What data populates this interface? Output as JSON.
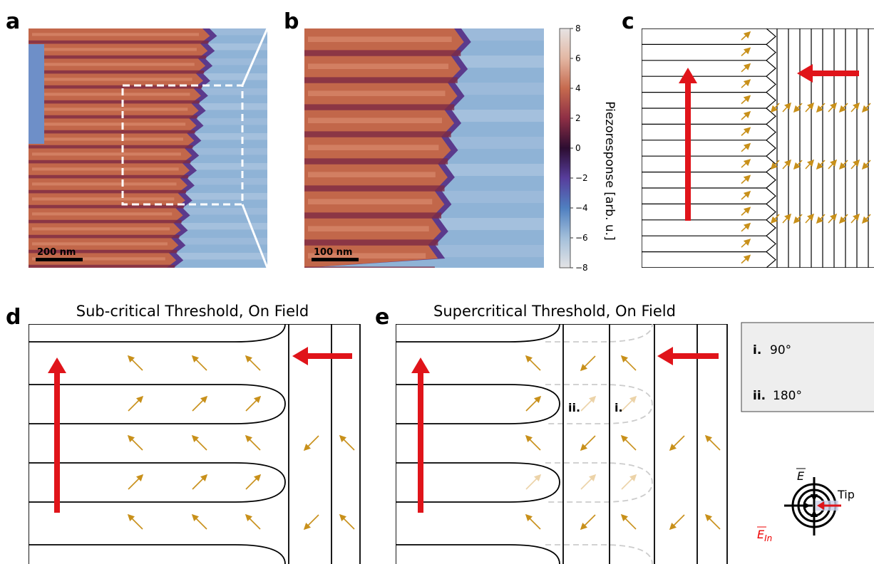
{
  "panels": {
    "a": "a",
    "b": "b",
    "c": "c",
    "d": "d",
    "e": "e"
  },
  "panel_a": {
    "scalebar": "200 nm"
  },
  "panel_b": {
    "scalebar": "100 nm"
  },
  "colorbar": {
    "ticks": [
      "8",
      "6",
      "4",
      "2",
      "0",
      "−2",
      "−4",
      "−6",
      "−8"
    ],
    "label": "Piezoresponse [arb. u.]"
  },
  "panel_d": {
    "title": "Sub-critical Threshold, On Field"
  },
  "panel_e": {
    "title": "Supercritical Threshold, On Field",
    "labels": [
      "ii.",
      "i."
    ]
  },
  "legend": {
    "rows": [
      {
        "marker": "i.",
        "angle": "90°"
      },
      {
        "marker": "ii.",
        "angle": "180°"
      }
    ]
  },
  "tip_diagram": {
    "field_label": "E",
    "in_field_label": "E",
    "in_subscript": "In",
    "tip_label": "Tip"
  }
}
